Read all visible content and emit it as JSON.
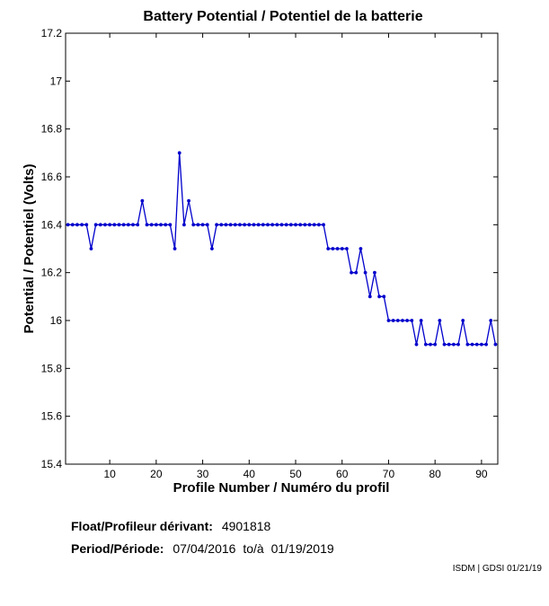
{
  "chart_data": {
    "type": "line",
    "title": "Battery Potential / Potentiel de la batterie",
    "xlabel": "Profile Number / Numéro du profil",
    "ylabel": "Potential / Potentiel (Volts)",
    "xlim": [
      0.5,
      93.5
    ],
    "ylim": [
      15.4,
      17.2
    ],
    "xticks": [
      10,
      20,
      30,
      40,
      50,
      60,
      70,
      80,
      90
    ],
    "yticks": [
      15.4,
      15.6,
      15.8,
      16,
      16.2,
      16.4,
      16.6,
      16.8,
      17,
      17.2
    ],
    "ytick_labels": [
      "15.4",
      "15.6",
      "15.8",
      "16",
      "16.2",
      "16.4",
      "16.6",
      "16.8",
      "17",
      "17.2"
    ],
    "grid": false,
    "line_color": "#0000cc",
    "series": [
      {
        "x": [
          1,
          2,
          3,
          4,
          5,
          6,
          7,
          8,
          9,
          10,
          11,
          12,
          13,
          14,
          15,
          16,
          17,
          18,
          19,
          20,
          21,
          22,
          23,
          24,
          25,
          26,
          27,
          28,
          29,
          30,
          31,
          32,
          33,
          34,
          35,
          36,
          37,
          38,
          39,
          40,
          41,
          42,
          43,
          44,
          45,
          46,
          47,
          48,
          49,
          50,
          51,
          52,
          53,
          54,
          55,
          56,
          57,
          58,
          59,
          60,
          61,
          62,
          63,
          64,
          65,
          66,
          67,
          68,
          69,
          70,
          71,
          72,
          73,
          74,
          75,
          76,
          77,
          78,
          79,
          80,
          81,
          82,
          83,
          84,
          85,
          86,
          87,
          88,
          89,
          90,
          91,
          92,
          93
        ],
        "values": [
          16.4,
          16.4,
          16.4,
          16.4,
          16.4,
          16.3,
          16.4,
          16.4,
          16.4,
          16.4,
          16.4,
          16.4,
          16.4,
          16.4,
          16.4,
          16.4,
          16.5,
          16.4,
          16.4,
          16.4,
          16.4,
          16.4,
          16.4,
          16.3,
          16.7,
          16.4,
          16.5,
          16.4,
          16.4,
          16.4,
          16.4,
          16.3,
          16.4,
          16.4,
          16.4,
          16.4,
          16.4,
          16.4,
          16.4,
          16.4,
          16.4,
          16.4,
          16.4,
          16.4,
          16.4,
          16.4,
          16.4,
          16.4,
          16.4,
          16.4,
          16.4,
          16.4,
          16.4,
          16.4,
          16.4,
          16.4,
          16.3,
          16.3,
          16.3,
          16.3,
          16.3,
          16.2,
          16.2,
          16.3,
          16.2,
          16.1,
          16.2,
          16.1,
          16.1,
          16.0,
          16.0,
          16.0,
          16.0,
          16.0,
          16.0,
          15.9,
          16.0,
          15.9,
          15.9,
          15.9,
          16.0,
          15.9,
          15.9,
          15.9,
          15.9,
          16.0,
          15.9,
          15.9,
          15.9,
          15.9,
          15.9,
          16.0,
          15.9
        ]
      }
    ]
  },
  "info": {
    "float_label": "Float/Profileur dérivant:",
    "float_value": "4901818",
    "period_label": "Period/Période:",
    "period_start": "07/04/2016",
    "period_sep": "to/à",
    "period_end": "01/19/2019"
  },
  "credit": "ISDM | GDSI 01/21/19"
}
